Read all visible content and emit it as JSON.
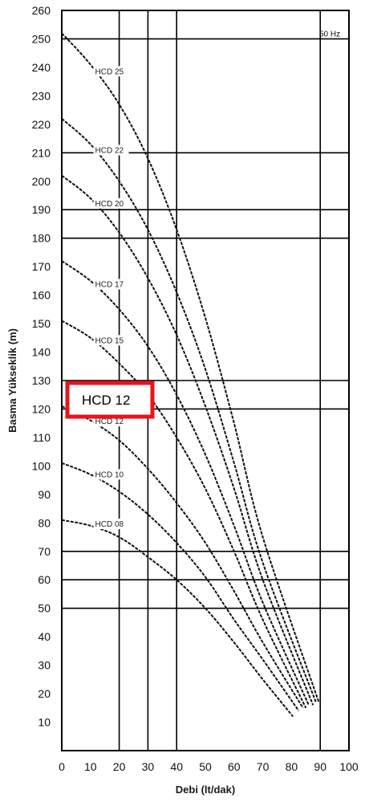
{
  "chart_data": {
    "type": "line",
    "title": "",
    "xlabel": "Debi (lt/dak)",
    "ylabel": "Basma Yükseklik (m)",
    "xlim": [
      0,
      100
    ],
    "ylim": [
      0,
      260
    ],
    "x_ticks": [
      "0",
      "10",
      "20",
      "30",
      "40",
      "50",
      "60",
      "70",
      "80",
      "90",
      "100"
    ],
    "y_ticks": [
      "10",
      "20",
      "30",
      "40",
      "50",
      "60",
      "70",
      "80",
      "90",
      "100",
      "110",
      "120",
      "130",
      "140",
      "150",
      "160",
      "170",
      "180",
      "190",
      "200",
      "210",
      "220",
      "230",
      "240",
      "250",
      "260"
    ],
    "grid_x": [
      20,
      30,
      40,
      90
    ],
    "grid_y": [
      50,
      60,
      70,
      120,
      130,
      180,
      190,
      210,
      250
    ],
    "frequency_label": "50 Hz",
    "highlight_label": "HCD 12",
    "highlight_color": "#e8141c",
    "series": [
      {
        "name": "HCD 08",
        "x": [
          0,
          10,
          20,
          30,
          40,
          50,
          60,
          70,
          80.5
        ],
        "y": [
          81,
          79,
          75,
          68,
          60,
          50,
          38,
          25,
          12
        ]
      },
      {
        "name": "HCD 10",
        "x": [
          0,
          10,
          20,
          30,
          40,
          50,
          60,
          70,
          82.5
        ],
        "y": [
          101,
          97,
          91,
          83,
          73,
          61,
          46,
          32,
          14
        ]
      },
      {
        "name": "HCD 12",
        "x": [
          0,
          10,
          20,
          30,
          40,
          50,
          60,
          70,
          84
        ],
        "y": [
          121,
          116,
          109,
          99,
          87,
          73,
          56,
          38,
          15
        ]
      },
      {
        "name": "HCD 15",
        "x": [
          0,
          10,
          20,
          30,
          40,
          50,
          60,
          70,
          85
        ],
        "y": [
          151,
          145,
          136,
          125,
          110,
          92,
          70,
          46,
          15
        ]
      },
      {
        "name": "HCD 17",
        "x": [
          0,
          10,
          20,
          30,
          40,
          50,
          60,
          70,
          86
        ],
        "y": [
          172,
          165,
          155,
          142,
          125,
          104,
          79,
          52,
          16
        ]
      },
      {
        "name": "HCD 20",
        "x": [
          0,
          10,
          20,
          30,
          40,
          50,
          60,
          70,
          87.5
        ],
        "y": [
          202,
          194,
          182,
          166,
          146,
          121,
          92,
          60,
          16
        ]
      },
      {
        "name": "HCD 22",
        "x": [
          0,
          10,
          20,
          30,
          40,
          50,
          60,
          70,
          88.5
        ],
        "y": [
          222,
          213,
          200,
          183,
          161,
          134,
          101,
          66,
          17
        ]
      },
      {
        "name": "HCD 25",
        "x": [
          0,
          10,
          20,
          30,
          40,
          50,
          60,
          70,
          89.5
        ],
        "y": [
          252,
          241,
          227,
          208,
          183,
          152,
          115,
          75,
          17
        ]
      }
    ]
  }
}
